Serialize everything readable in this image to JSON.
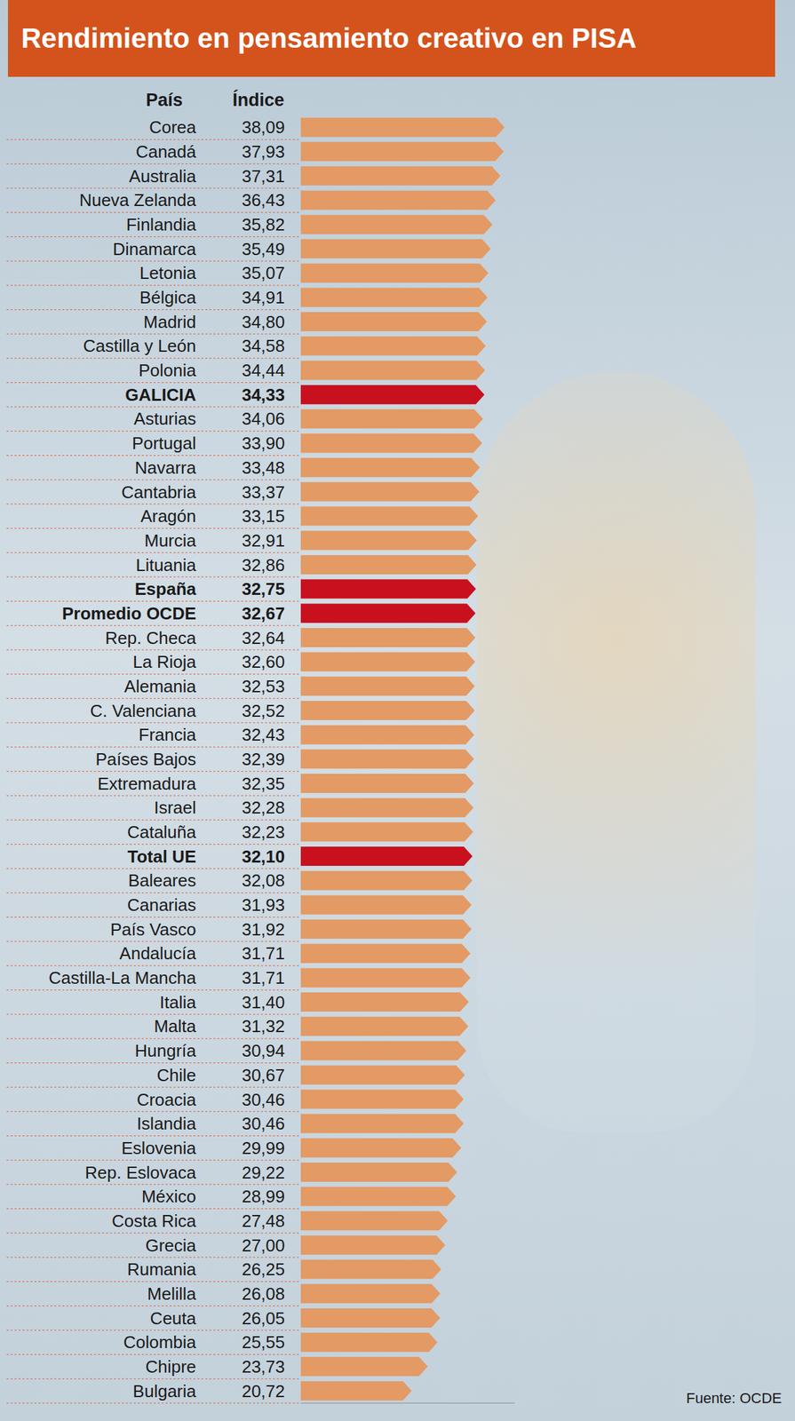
{
  "chart_data": {
    "type": "bar",
    "orientation": "horizontal",
    "title": "Rendimiento en pensamiento creativo en PISA",
    "category_label": "País",
    "value_label": "Índice",
    "source": "Fuente: OCDE",
    "categories": [
      "Corea",
      "Canadá",
      "Australia",
      "Nueva Zelanda",
      "Finlandia",
      "Dinamarca",
      "Letonia",
      "Bélgica",
      "Madrid",
      "Castilla y León",
      "Polonia",
      "GALICIA",
      "Asturias",
      "Portugal",
      "Navarra",
      "Cantabria",
      "Aragón",
      "Murcia",
      "Lituania",
      "España",
      "Promedio OCDE",
      "Rep. Checa",
      "La Rioja",
      "Alemania",
      "C. Valenciana",
      "Francia",
      "Países Bajos",
      "Extremadura",
      "Israel",
      "Cataluña",
      "Total UE",
      "Baleares",
      "Canarias",
      "País Vasco",
      "Andalucía",
      "Castilla-La Mancha",
      "Italia",
      "Malta",
      "Hungría",
      "Chile",
      "Croacia",
      "Islandia",
      "Eslovenia",
      "Rep. Eslovaca",
      "México",
      "Costa Rica",
      "Grecia",
      "Rumania",
      "Melilla",
      "Ceuta",
      "Colombia",
      "Chipre",
      "Bulgaria"
    ],
    "values": [
      38.09,
      37.93,
      37.31,
      36.43,
      35.82,
      35.49,
      35.07,
      34.91,
      34.8,
      34.58,
      34.44,
      34.33,
      34.06,
      33.9,
      33.48,
      33.37,
      33.15,
      32.91,
      32.86,
      32.75,
      32.67,
      32.64,
      32.6,
      32.53,
      32.52,
      32.43,
      32.39,
      32.35,
      32.28,
      32.23,
      32.1,
      32.08,
      31.93,
      31.92,
      31.71,
      31.71,
      31.4,
      31.32,
      30.94,
      30.67,
      30.46,
      30.46,
      29.99,
      29.22,
      28.99,
      27.48,
      27.0,
      26.25,
      26.08,
      26.05,
      25.55,
      23.73,
      20.72
    ],
    "value_labels": [
      "38,09",
      "37,93",
      "37,31",
      "36,43",
      "35,82",
      "35,49",
      "35,07",
      "34,91",
      "34,80",
      "34,58",
      "34,44",
      "34,33",
      "34,06",
      "33,90",
      "33,48",
      "33,37",
      "33,15",
      "32,91",
      "32,86",
      "32,75",
      "32,67",
      "32,64",
      "32,60",
      "32,53",
      "32,52",
      "32,43",
      "32,39",
      "32,35",
      "32,28",
      "32,23",
      "32,10",
      "32,08",
      "31,93",
      "31,92",
      "31,71",
      "31,71",
      "31,40",
      "31,32",
      "30,94",
      "30,67",
      "30,46",
      "30,46",
      "29,99",
      "29,22",
      "28,99",
      "27,48",
      "27,00",
      "26,25",
      "26,08",
      "26,05",
      "25,55",
      "23,73",
      "20,72"
    ],
    "color": "#e39a64",
    "colors": [
      "#e39a64",
      "#e39a64",
      "#e39a64",
      "#e39a64",
      "#e39a64",
      "#e39a64",
      "#e39a64",
      "#e39a64",
      "#e39a64",
      "#e39a64",
      "#e39a64",
      "#c8101e",
      "#e39a64",
      "#e39a64",
      "#e39a64",
      "#e39a64",
      "#e39a64",
      "#e39a64",
      "#e39a64",
      "#c8101e",
      "#c8101e",
      "#e39a64",
      "#e39a64",
      "#e39a64",
      "#e39a64",
      "#e39a64",
      "#e39a64",
      "#e39a64",
      "#e39a64",
      "#e39a64",
      "#c8101e",
      "#e39a64",
      "#e39a64",
      "#e39a64",
      "#e39a64",
      "#e39a64",
      "#e39a64",
      "#e39a64",
      "#e39a64",
      "#e39a64",
      "#e39a64",
      "#e39a64",
      "#e39a64",
      "#e39a64",
      "#e39a64",
      "#e39a64",
      "#e39a64",
      "#e39a64",
      "#e39a64",
      "#e39a64",
      "#e39a64",
      "#e39a64",
      "#e39a64"
    ],
    "xlim": [
      0,
      40
    ],
    "tick_labels": "y"
  }
}
